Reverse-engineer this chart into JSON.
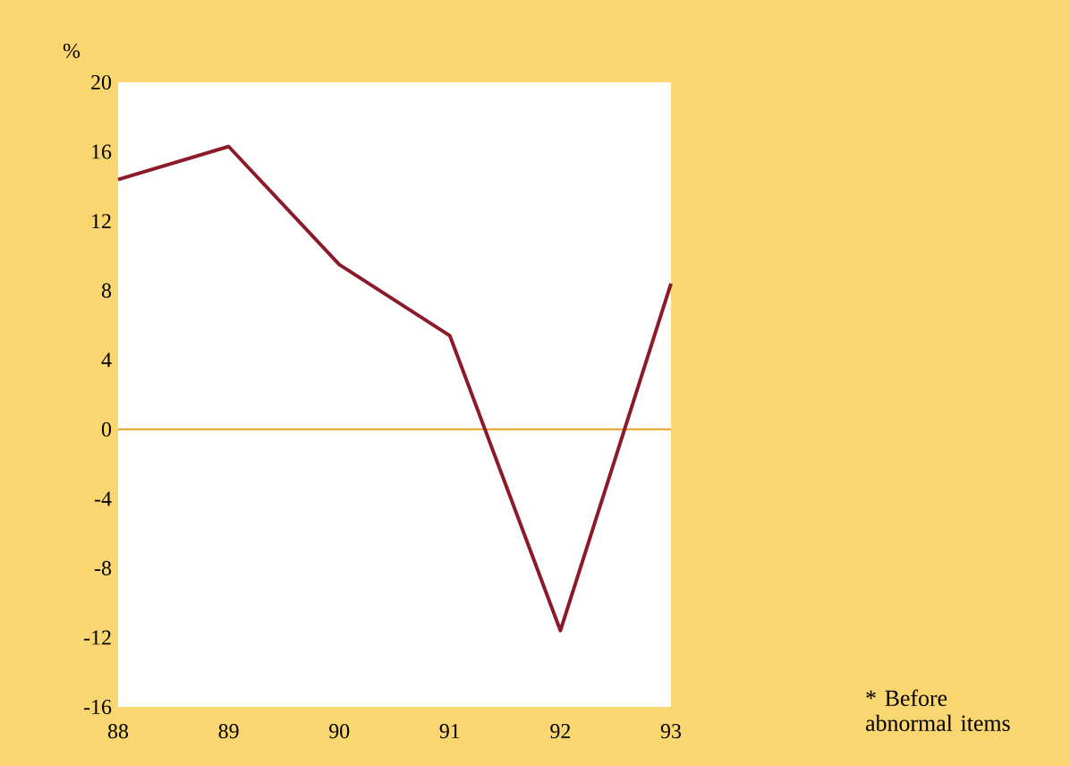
{
  "chart_data": {
    "type": "line",
    "ylabel": "%",
    "categories": [
      "88",
      "89",
      "90",
      "91",
      "92",
      "93"
    ],
    "series": [
      {
        "color": "#8b1a2b",
        "values": [
          14.4,
          16.3,
          9.5,
          5.4,
          -11.6,
          8.4
        ]
      }
    ],
    "ylim": [
      -16,
      20
    ],
    "yticks": [
      -16,
      -12,
      -8,
      -4,
      0,
      4,
      8,
      12,
      16,
      20
    ],
    "ref_lines": [
      {
        "axis": "y",
        "value": 0,
        "color": "#e8a020"
      }
    ],
    "annotations": [
      "* Before abnormal items"
    ]
  }
}
